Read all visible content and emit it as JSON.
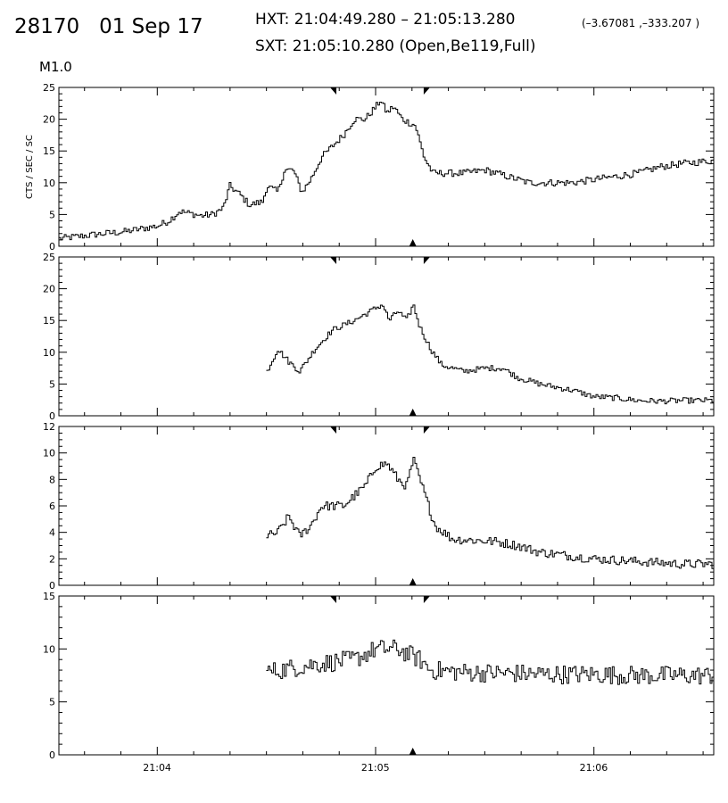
{
  "header": {
    "id_date": "28170   01 Sep 17",
    "hxt_label": "HXT: 21:04:49.280 – 21:05:13.280",
    "hxt_coords": "(–3.67081 ,–333.207 )",
    "sxt_label": "SXT: 21:05:10.280 (Open,Be119,Full)",
    "goes_class": "M1.0"
  },
  "chart_data": {
    "type": "line",
    "step": true,
    "x_units": "minutes after 21:00 UT",
    "x_range": [
      3.55,
      6.55
    ],
    "x_ticks": [
      {
        "value": 4,
        "label": "21:04"
      },
      {
        "value": 5,
        "label": "21:05"
      },
      {
        "value": 6,
        "label": "21:06"
      }
    ],
    "x_minor_step": 0.1667,
    "hxt_interval_markers": [
      4.8213,
      5.2213
    ],
    "sxt_marker": 5.1713,
    "ylabel": "CTS / SEC / SC",
    "line_color": "#000000",
    "panels": [
      {
        "id": "L",
        "y_range": [
          0,
          25
        ],
        "y_ticks": [
          0,
          5,
          10,
          15,
          20,
          25
        ],
        "y_minor_step": 1,
        "knots": [
          [
            3.55,
            1.2
          ],
          [
            3.7,
            1.8
          ],
          [
            3.85,
            2.3
          ],
          [
            4.0,
            3.2
          ],
          [
            4.05,
            4.0
          ],
          [
            4.1,
            5.5
          ],
          [
            4.2,
            4.8
          ],
          [
            4.25,
            5.0
          ],
          [
            4.3,
            6.0
          ],
          [
            4.33,
            9.5
          ],
          [
            4.38,
            8.0
          ],
          [
            4.42,
            6.5
          ],
          [
            4.48,
            7.0
          ],
          [
            4.5,
            9.5
          ],
          [
            4.55,
            8.5
          ],
          [
            4.58,
            12.0
          ],
          [
            4.62,
            12.0
          ],
          [
            4.66,
            8.5
          ],
          [
            4.7,
            10.5
          ],
          [
            4.75,
            14.0
          ],
          [
            4.85,
            17.5
          ],
          [
            4.9,
            20.0
          ],
          [
            4.95,
            20.0
          ],
          [
            5.0,
            22.0
          ],
          [
            5.02,
            23.0
          ],
          [
            5.05,
            21.0
          ],
          [
            5.08,
            22.0
          ],
          [
            5.12,
            20.0
          ],
          [
            5.18,
            19.0
          ],
          [
            5.22,
            14.0
          ],
          [
            5.26,
            11.5
          ],
          [
            5.4,
            11.5
          ],
          [
            5.5,
            12.0
          ],
          [
            5.6,
            11.0
          ],
          [
            5.7,
            10.0
          ],
          [
            5.8,
            10.0
          ],
          [
            5.9,
            10.0
          ],
          [
            6.0,
            10.5
          ],
          [
            6.1,
            11.0
          ],
          [
            6.2,
            11.5
          ],
          [
            6.3,
            12.5
          ],
          [
            6.4,
            13.0
          ],
          [
            6.55,
            13.5
          ]
        ],
        "noise": 0.55,
        "start": 3.55
      },
      {
        "id": "M1",
        "y_range": [
          0,
          25
        ],
        "y_ticks": [
          0,
          5,
          10,
          15,
          20,
          25
        ],
        "y_minor_step": 1,
        "knots": [
          [
            4.5,
            7.0
          ],
          [
            4.55,
            10.5
          ],
          [
            4.6,
            8.5
          ],
          [
            4.65,
            7.0
          ],
          [
            4.72,
            10.5
          ],
          [
            4.8,
            13.5
          ],
          [
            4.9,
            15.0
          ],
          [
            5.0,
            17.0
          ],
          [
            5.03,
            17.5
          ],
          [
            5.06,
            15.0
          ],
          [
            5.1,
            16.5
          ],
          [
            5.14,
            15.0
          ],
          [
            5.17,
            17.5
          ],
          [
            5.2,
            14.0
          ],
          [
            5.25,
            10.5
          ],
          [
            5.3,
            8.0
          ],
          [
            5.4,
            7.0
          ],
          [
            5.5,
            7.5
          ],
          [
            5.58,
            7.5
          ],
          [
            5.65,
            6.0
          ],
          [
            5.75,
            5.0
          ],
          [
            5.9,
            4.0
          ],
          [
            6.0,
            3.0
          ],
          [
            6.1,
            2.8
          ],
          [
            6.2,
            2.4
          ],
          [
            6.3,
            2.3
          ],
          [
            6.4,
            2.4
          ],
          [
            6.55,
            2.4
          ]
        ],
        "noise": 0.45,
        "start": 4.5
      },
      {
        "id": "M2",
        "y_range": [
          0,
          12
        ],
        "y_ticks": [
          0,
          2,
          4,
          6,
          8,
          10,
          12
        ],
        "y_minor_step": 0.5,
        "knots": [
          [
            4.5,
            3.7
          ],
          [
            4.55,
            4.0
          ],
          [
            4.6,
            5.2
          ],
          [
            4.65,
            3.7
          ],
          [
            4.7,
            4.5
          ],
          [
            4.75,
            6.0
          ],
          [
            4.85,
            6.0
          ],
          [
            4.95,
            7.5
          ],
          [
            5.0,
            9.0
          ],
          [
            5.05,
            9.2
          ],
          [
            5.1,
            8.0
          ],
          [
            5.14,
            7.5
          ],
          [
            5.17,
            9.5
          ],
          [
            5.22,
            7.0
          ],
          [
            5.27,
            4.5
          ],
          [
            5.35,
            3.5
          ],
          [
            5.45,
            3.4
          ],
          [
            5.55,
            3.3
          ],
          [
            5.65,
            3.0
          ],
          [
            5.75,
            2.5
          ],
          [
            5.9,
            2.2
          ],
          [
            6.0,
            2.0
          ],
          [
            6.2,
            1.8
          ],
          [
            6.4,
            1.6
          ],
          [
            6.55,
            1.6
          ]
        ],
        "noise": 0.35,
        "start": 4.5
      },
      {
        "id": "H",
        "y_range": [
          0,
          15
        ],
        "y_ticks": [
          0,
          5,
          10,
          15
        ],
        "y_minor_step": 1,
        "knots": [
          [
            4.5,
            7.8
          ],
          [
            4.7,
            8.5
          ],
          [
            4.9,
            9.0
          ],
          [
            5.0,
            10.0
          ],
          [
            5.1,
            10.0
          ],
          [
            5.2,
            9.0
          ],
          [
            5.25,
            8.0
          ],
          [
            5.4,
            7.8
          ],
          [
            5.6,
            7.7
          ],
          [
            5.8,
            7.6
          ],
          [
            6.0,
            7.6
          ],
          [
            6.2,
            7.5
          ],
          [
            6.4,
            7.5
          ],
          [
            6.55,
            7.5
          ]
        ],
        "noise": 0.9,
        "start": 4.5
      }
    ]
  }
}
